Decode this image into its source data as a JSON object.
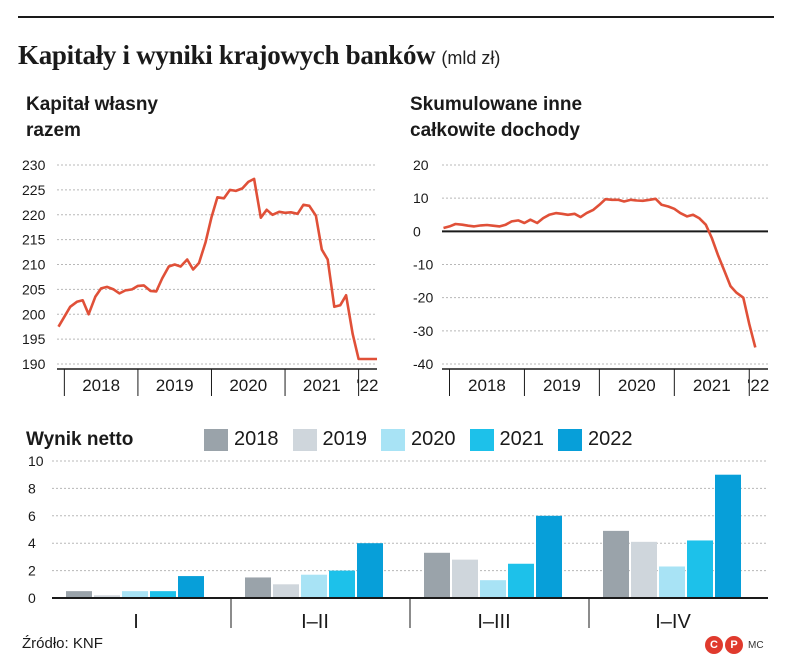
{
  "title": "Kapitały i wyniki krajowych banków",
  "unit": "(mld zł)",
  "source": "Źródło: KNF",
  "logo": {
    "c": "C",
    "p": "P",
    "tag": "MC"
  },
  "colors": {
    "line": "#e05038",
    "axis": "#1a1a1a",
    "grid": "#b8b8b8",
    "bars": [
      "#9aa3aa",
      "#cfd6dc",
      "#a8e3f5",
      "#1dc1ea",
      "#079fd9"
    ]
  },
  "chart_data": [
    {
      "type": "line",
      "title_lines": [
        "Kapitał własny",
        "razem"
      ],
      "ylim": [
        190,
        230
      ],
      "yticks": [
        "190",
        "195",
        "200",
        "205",
        "210",
        "215",
        "220",
        "225",
        "230"
      ],
      "xlabels": [
        "2018",
        "2019",
        "2020",
        "2021",
        "'22"
      ],
      "xlim": [
        2017.9,
        2022.25
      ],
      "series": [
        {
          "x": [
            2017.92,
            2018.0,
            2018.08,
            2018.17,
            2018.25,
            2018.33,
            2018.42,
            2018.5,
            2018.58,
            2018.67,
            2018.75,
            2018.83,
            2018.92,
            2019.0,
            2019.08,
            2019.17,
            2019.25,
            2019.33,
            2019.42,
            2019.5,
            2019.58,
            2019.67,
            2019.75,
            2019.83,
            2019.92,
            2020.0,
            2020.08,
            2020.17,
            2020.25,
            2020.33,
            2020.42,
            2020.5,
            2020.58,
            2020.67,
            2020.75,
            2020.83,
            2020.92,
            2021.0,
            2021.08,
            2021.17,
            2021.25,
            2021.33,
            2021.42,
            2021.5,
            2021.58,
            2021.67,
            2021.75,
            2021.83,
            2021.92,
            2022.0,
            2022.08,
            2022.17,
            2022.25
          ],
          "values": [
            197.5,
            199.5,
            201.5,
            202.5,
            202.8,
            200.0,
            203.5,
            205.2,
            205.5,
            205.0,
            204.2,
            204.8,
            205.0,
            205.7,
            205.8,
            204.7,
            204.6,
            207.2,
            209.6,
            210.0,
            209.6,
            211.0,
            209.0,
            210.3,
            214.5,
            219.5,
            223.5,
            223.3,
            225.0,
            224.8,
            225.3,
            226.6,
            227.2,
            219.4,
            221.0,
            220.0,
            220.6,
            220.4,
            220.5,
            220.2,
            222.0,
            221.8,
            219.8,
            213.0,
            211.0,
            201.5,
            201.8,
            203.8,
            196.0,
            191.0,
            191.0,
            191.0,
            191.0
          ]
        }
      ]
    },
    {
      "type": "line",
      "title_lines": [
        "Skumulowane inne",
        "całkowite dochody"
      ],
      "ylim": [
        -40,
        20
      ],
      "yticks": [
        "-40",
        "-30",
        "-20",
        "-10",
        "0",
        "10",
        "20"
      ],
      "xlabels": [
        "2018",
        "2019",
        "2020",
        "2021",
        "'22"
      ],
      "xlim": [
        2017.9,
        2022.25
      ],
      "series": [
        {
          "x": [
            2017.92,
            2018.0,
            2018.08,
            2018.17,
            2018.25,
            2018.33,
            2018.42,
            2018.5,
            2018.58,
            2018.67,
            2018.75,
            2018.83,
            2018.92,
            2019.0,
            2019.08,
            2019.17,
            2019.25,
            2019.33,
            2019.42,
            2019.5,
            2019.58,
            2019.67,
            2019.75,
            2019.83,
            2019.92,
            2020.0,
            2020.08,
            2020.17,
            2020.25,
            2020.33,
            2020.42,
            2020.5,
            2020.58,
            2020.67,
            2020.75,
            2020.83,
            2020.92,
            2021.0,
            2021.08,
            2021.17,
            2021.25,
            2021.33,
            2021.42,
            2021.5,
            2021.58,
            2021.67,
            2021.75,
            2021.83,
            2021.92,
            2022.0,
            2022.08
          ],
          "values": [
            1.0,
            1.5,
            2.2,
            2.0,
            1.7,
            1.5,
            1.8,
            1.9,
            1.7,
            1.5,
            2.0,
            3.0,
            3.3,
            2.5,
            3.5,
            2.5,
            4.0,
            5.0,
            5.5,
            5.3,
            5.0,
            5.3,
            4.3,
            5.5,
            6.5,
            8.0,
            9.7,
            9.5,
            9.5,
            9.0,
            9.5,
            9.3,
            9.2,
            9.5,
            9.8,
            8.0,
            7.5,
            6.8,
            5.5,
            4.5,
            5.0,
            4.0,
            2.0,
            -2.0,
            -7.0,
            -12.0,
            -16.5,
            -18.5,
            -20.0,
            -28.0,
            -35.0
          ]
        }
      ]
    },
    {
      "type": "bar",
      "title": "Wynik netto",
      "categories": [
        "I",
        "I–II",
        "I–III",
        "I–IV"
      ],
      "ylim": [
        0,
        10
      ],
      "yticks": [
        "0",
        "2",
        "4",
        "6",
        "8",
        "10"
      ],
      "series": [
        {
          "name": "2018",
          "values": [
            0.5,
            1.5,
            3.3,
            4.9
          ]
        },
        {
          "name": "2019",
          "values": [
            0.2,
            1.0,
            2.8,
            4.1
          ]
        },
        {
          "name": "2020",
          "values": [
            0.5,
            1.7,
            1.3,
            2.3
          ]
        },
        {
          "name": "2021",
          "values": [
            0.5,
            2.0,
            2.5,
            4.2
          ]
        },
        {
          "name": "2022",
          "values": [
            1.6,
            4.0,
            6.0,
            9.0
          ]
        }
      ]
    }
  ]
}
